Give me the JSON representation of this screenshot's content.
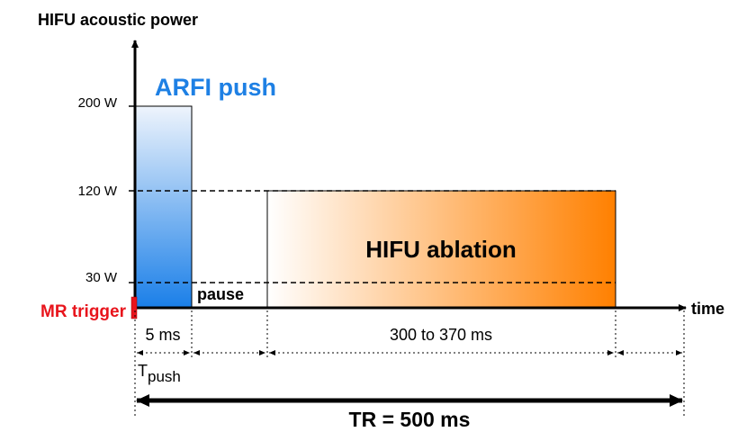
{
  "axes": {
    "y_label": "HIFU acoustic power",
    "x_label": "time",
    "power_levels": [
      "200 W",
      "120 W",
      "30 W"
    ]
  },
  "pulses": {
    "push": "ARFI push",
    "pause": "pause",
    "ablation": "HIFU ablation"
  },
  "trigger": "MR trigger",
  "durations": {
    "push": "5 ms",
    "ablation": "300 to 370 ms",
    "t_push": {
      "main": "T",
      "sub": "push"
    },
    "tr": "TR = 500 ms"
  }
}
